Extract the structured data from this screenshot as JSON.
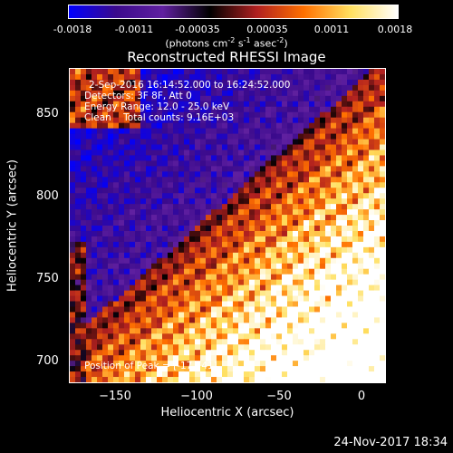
{
  "colorbar": {
    "ticks": [
      "-0.0018",
      "-0.0011",
      "-0.00035",
      "0.00035",
      "0.0011",
      "0.0018"
    ],
    "units_main": "(photons cm",
    "units_exp1": "-2",
    "units_mid": " s",
    "units_exp2": "-1",
    "units_end": " asec",
    "units_exp3": "-2",
    "units_close": ")"
  },
  "title": "Reconstructed RHESSI Image",
  "annotations": {
    "time_range": "2-Sep-2016 16:14:52.000 to 16:24:52.000",
    "detectors": "Detectors: 3F 8F, Att 0",
    "energy": "Energy Range: 12.0 - 25.0 keV",
    "clean": "Clean    Total counts: 9.16E+03",
    "peak": "Position of Peak = [-17,741]"
  },
  "x_axis": {
    "label": "Heliocentric X (arcsec)",
    "ticks": [
      "−150",
      "−100",
      "−50",
      "0"
    ]
  },
  "y_axis": {
    "label": "Heliocentric Y (arcsec)",
    "ticks": [
      "850",
      "800",
      "750",
      "700"
    ]
  },
  "timestamp": "24-Nov-2017 18:34",
  "colors": {
    "background": "#000000",
    "colormap": [
      "#0000ff",
      "#3a0a8c",
      "#6020a0",
      "#000000",
      "#b02020",
      "#ff7000",
      "#ffe060",
      "#ffffff"
    ]
  }
}
